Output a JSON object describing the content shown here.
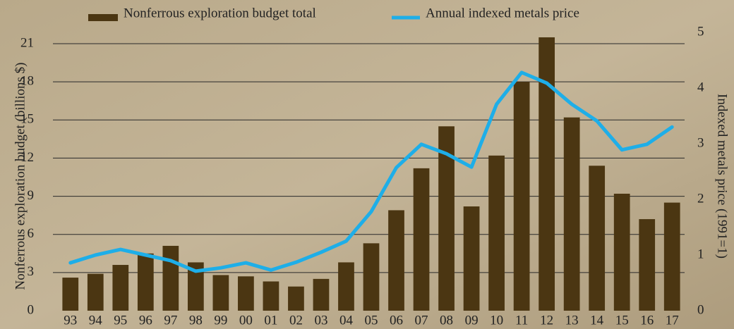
{
  "chart_data": {
    "type": "bar-line",
    "categories": [
      "93",
      "94",
      "95",
      "96",
      "97",
      "98",
      "99",
      "00",
      "01",
      "02",
      "03",
      "04",
      "05",
      "06",
      "07",
      "08",
      "09",
      "10",
      "11",
      "12",
      "13",
      "14",
      "15",
      "16",
      "17"
    ],
    "series": [
      {
        "name": "Nonferrous exploration budget total",
        "type": "bar",
        "color": "#4b3612",
        "values": [
          2.6,
          2.9,
          3.6,
          4.5,
          5.1,
          3.8,
          2.8,
          2.7,
          2.3,
          1.9,
          2.5,
          3.8,
          5.3,
          7.9,
          11.2,
          14.5,
          8.2,
          12.2,
          18.0,
          21.5,
          15.2,
          11.4,
          9.2,
          7.2,
          8.5
        ]
      },
      {
        "name": "Annual indexed metals price",
        "type": "line",
        "axis": "y2",
        "color": "#1eaee8",
        "values": [
          0.86,
          1.0,
          1.1,
          1.0,
          0.9,
          0.71,
          0.77,
          0.86,
          0.73,
          0.87,
          1.05,
          1.25,
          1.78,
          2.57,
          2.99,
          2.82,
          2.58,
          3.71,
          4.28,
          4.09,
          3.71,
          3.41,
          2.89,
          2.99,
          3.3
        ]
      }
    ],
    "y_label": "Nonferrous exploration budget (billions $)",
    "y2_label": "Indexed metals price (1991=1)",
    "ylim": [
      0,
      21
    ],
    "yticks": [
      0,
      3,
      6,
      9,
      12,
      15,
      18,
      21
    ],
    "y2lim": [
      0,
      5
    ],
    "y2ticks": [
      0,
      1,
      2,
      3,
      4,
      5
    ],
    "grid": true
  }
}
